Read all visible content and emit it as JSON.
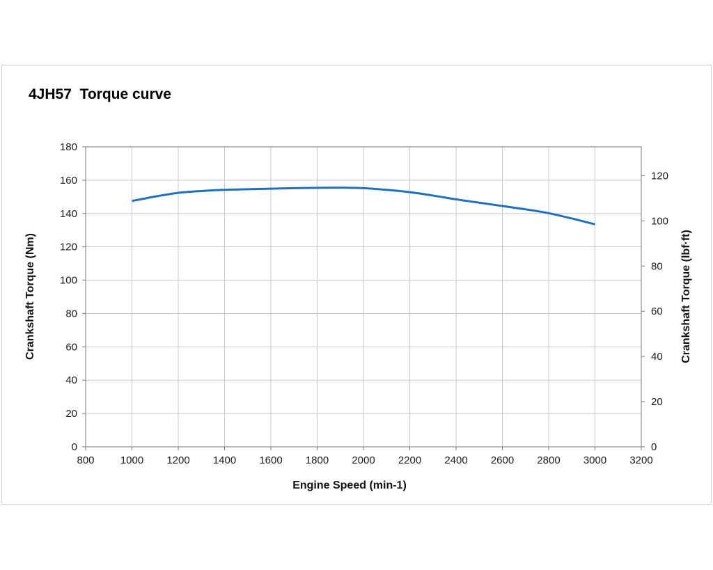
{
  "chart_data": {
    "type": "line",
    "title": "4JH57  Torque curve",
    "xlabel": "Engine Speed (min-1)",
    "ylabel": "Crankshaft Torque (Nm)",
    "y2label": "Crankshaft Torque (lbf·ft)",
    "xlim": [
      800,
      3200
    ],
    "ylim": [
      0,
      180
    ],
    "y2lim": [
      0,
      132.76
    ],
    "xticks": [
      800,
      1000,
      1200,
      1400,
      1600,
      1800,
      2000,
      2200,
      2400,
      2600,
      2800,
      3000,
      3200
    ],
    "yticks": [
      0,
      20,
      40,
      60,
      80,
      100,
      120,
      140,
      160,
      180
    ],
    "y2ticks": [
      0,
      20,
      40,
      60,
      80,
      100,
      120
    ],
    "grid": true,
    "legend": "none",
    "line_color": "#1f6fbf",
    "series": [
      {
        "x": [
          1000,
          1100,
          1200,
          1300,
          1400,
          1500,
          1600,
          1700,
          1800,
          1900,
          2000,
          2100,
          2200,
          2300,
          2400,
          2500,
          2600,
          2700,
          2800,
          2900,
          3000
        ],
        "values": [
          147.5,
          150.2,
          152.4,
          153.5,
          154.2,
          154.6,
          154.9,
          155.2,
          155.4,
          155.5,
          155.2,
          154.2,
          152.8,
          150.8,
          148.5,
          146.5,
          144.5,
          142.5,
          140.2,
          137.0,
          133.5
        ]
      }
    ]
  }
}
